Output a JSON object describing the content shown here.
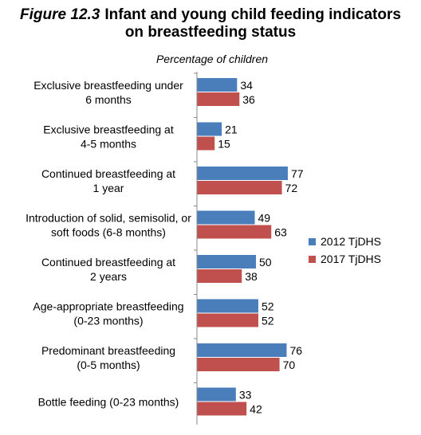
{
  "title": {
    "figure_label": "Figure 12.3",
    "line1": "Infant and young child feeding indicators",
    "line2": "on breastfeeding status"
  },
  "chart_data": {
    "type": "bar",
    "orientation": "horizontal",
    "subtitle": "Percentage of children",
    "categories": [
      [
        "Exclusive breastfeeding under",
        "6 months"
      ],
      [
        "Exclusive breastfeeding at",
        "4-5 months"
      ],
      [
        "Continued breastfeeding at",
        "1 year"
      ],
      [
        "Introduction of solid, semisolid, or",
        "soft foods (6-8 months)"
      ],
      [
        "Continued breastfeeding at",
        "2 years"
      ],
      [
        "Age-appropriate breastfeeding",
        "(0-23 months)"
      ],
      [
        "Predominant breastfeeding",
        "(0-5 months)"
      ],
      [
        "Bottle feeding (0-23 months)"
      ]
    ],
    "series": [
      {
        "name": "2012 TjDHS",
        "color": "#4a7ebb",
        "values": [
          34,
          21,
          77,
          49,
          50,
          52,
          76,
          33
        ]
      },
      {
        "name": "2017 TjDHS",
        "color": "#c0504d",
        "values": [
          36,
          15,
          72,
          63,
          38,
          52,
          70,
          42
        ]
      }
    ],
    "xlim": [
      0,
      100
    ],
    "grid": false,
    "data_labels": true,
    "legend_position": "right"
  }
}
